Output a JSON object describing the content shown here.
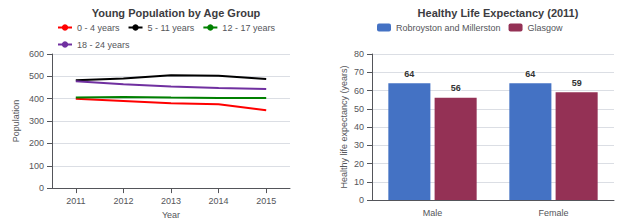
{
  "chart_data": [
    {
      "type": "line",
      "title": "Young Population by Age Group",
      "xlabel": "Year",
      "ylabel": "Population",
      "x": [
        2011,
        2012,
        2013,
        2014,
        2015
      ],
      "series": [
        {
          "name": "0 - 4 years",
          "color": "#ff0000",
          "values": [
            400,
            390,
            380,
            375,
            348
          ]
        },
        {
          "name": "5 - 11 years",
          "color": "#000000",
          "values": [
            483,
            490,
            505,
            503,
            488
          ]
        },
        {
          "name": "12 - 17 years",
          "color": "#008000",
          "values": [
            405,
            408,
            405,
            403,
            403
          ]
        },
        {
          "name": "18 - 24 years",
          "color": "#7030a0",
          "values": [
            478,
            465,
            455,
            448,
            443
          ]
        }
      ],
      "xlim": [
        2010.5,
        2015.5
      ],
      "xticks": [
        2011,
        2012,
        2013,
        2014,
        2015
      ],
      "ylim": [
        0,
        600
      ],
      "yticks": [
        0,
        100,
        200,
        300,
        400,
        500,
        600
      ],
      "grid": true,
      "legend": "top"
    },
    {
      "type": "bar",
      "title": "Healthy Life Expectancy (2011)",
      "ylabel": "Healthy life expectancy (years)",
      "categories": [
        "Male",
        "Female"
      ],
      "series": [
        {
          "name": "Robroyston and Millerston",
          "color": "#4472c4",
          "values": [
            64,
            64
          ]
        },
        {
          "name": "Glasgow",
          "color": "#943155",
          "values": [
            56,
            59
          ]
        }
      ],
      "ylim": [
        0,
        80
      ],
      "yticks": [
        0,
        10,
        20,
        30,
        40,
        50,
        60,
        70,
        80
      ],
      "grid": true,
      "legend": "top",
      "data_labels": true
    }
  ]
}
